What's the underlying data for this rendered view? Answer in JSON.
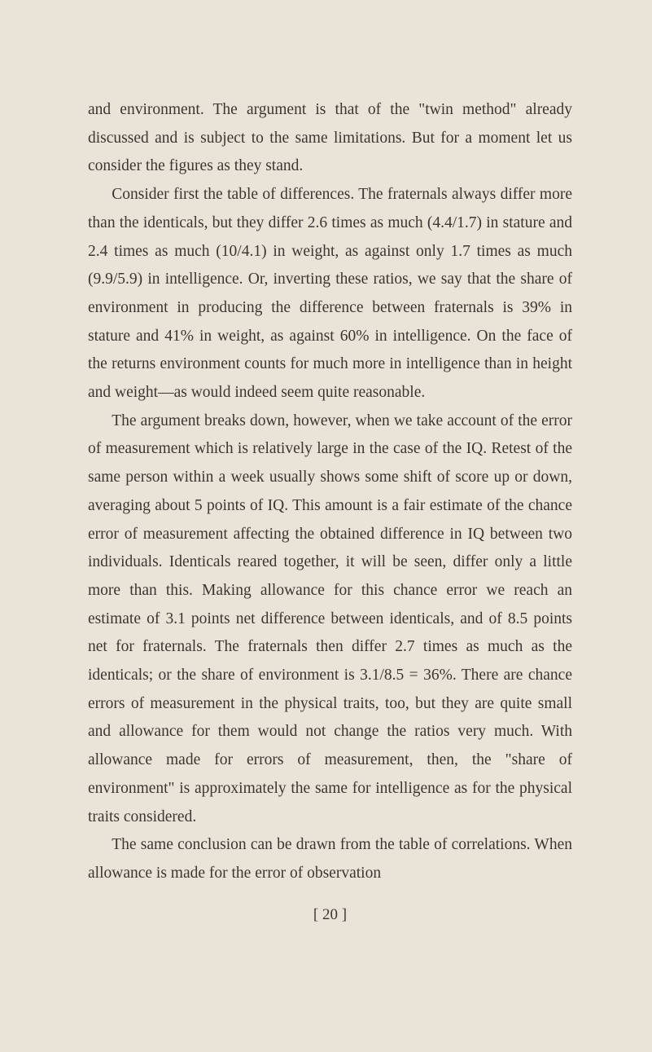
{
  "page": {
    "background_color": "#eae4d8",
    "text_color": "#3a3632",
    "font_family": "Georgia, Times New Roman, serif",
    "body_fontsize": 19.5,
    "line_height": 1.78,
    "paragraphs": [
      {
        "indent": false,
        "text": "and environment. The argument is that of the \"twin method\" already discussed and is subject to the same limitations. But for a moment let us consider the figures as they stand."
      },
      {
        "indent": true,
        "text": "Consider first the table of differences. The fraternals always differ more than the identicals, but they differ 2.6 times as much (4.4/1.7) in stature and 2.4 times as much (10/4.1) in weight, as against only 1.7 times as much (9.9/5.9) in intelligence. Or, inverting these ratios, we say that the share of environment in producing the difference between fraternals is 39% in stature and 41% in weight, as against 60% in intelligence. On the face of the returns environment counts for much more in intelligence than in height and weight—as would indeed seem quite reasonable."
      },
      {
        "indent": true,
        "text": "The argument breaks down, however, when we take account of the error of measurement which is relatively large in the case of the IQ. Retest of the same person within a week usually shows some shift of score up or down, averaging about 5 points of IQ. This amount is a fair estimate of the chance error of measurement affecting the obtained difference in IQ between two individuals. Identicals reared together, it will be seen, differ only a little more than this. Making allowance for this chance error we reach an estimate of 3.1 points net difference between identicals, and of 8.5 points net for fraternals. The fraternals then differ 2.7 times as much as the identicals; or the share of environment is 3.1/8.5 = 36%. There are chance errors of measurement in the physical traits, too, but they are quite small and allowance for them would not change the ratios very much. With allowance made for errors of measurement, then, the \"share of environment\" is approximately the same for intelligence as for the physical traits considered."
      },
      {
        "indent": true,
        "text": "The same conclusion can be drawn from the table of correlations. When allowance is made for the error of observation"
      }
    ],
    "page_number": "[ 20 ]"
  }
}
